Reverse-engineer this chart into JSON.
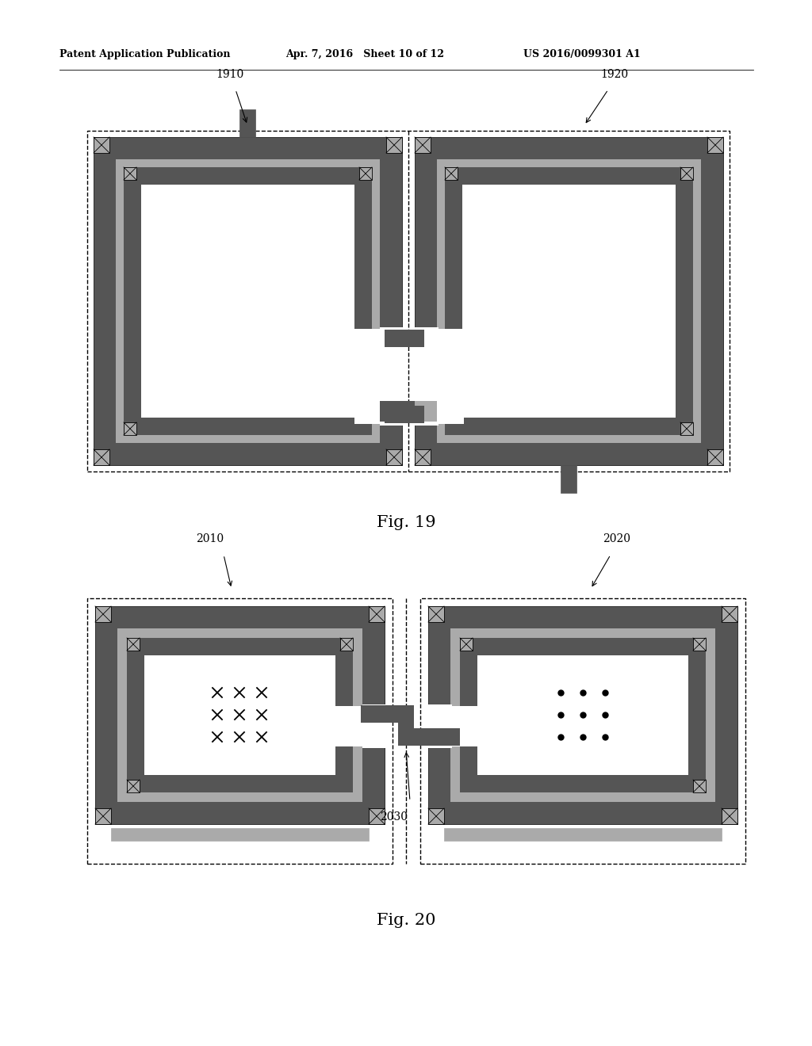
{
  "bg_color": "#ffffff",
  "header_left": "Patent Application Publication",
  "header_mid": "Apr. 7, 2016   Sheet 10 of 12",
  "header_right": "US 2016/0099301 A1",
  "fig19_label": "Fig. 19",
  "fig20_label": "Fig. 20",
  "label_1910": "1910",
  "label_1920": "1920",
  "label_2010": "2010",
  "label_2020": "2020",
  "label_2030": "2030",
  "C_dk": "#555555",
  "C_lt": "#aaaaaa",
  "C_vlt": "#cccccc",
  "C_wh": "#ffffff",
  "C_bk": "#000000",
  "C_md": "#888888"
}
